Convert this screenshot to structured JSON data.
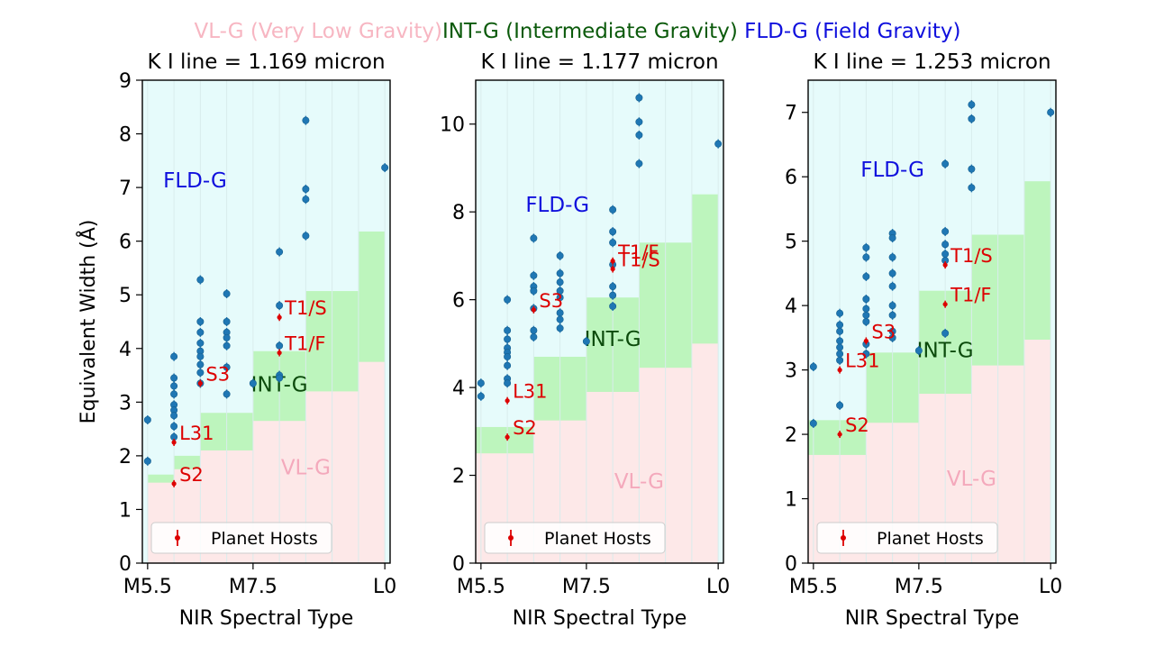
{
  "figure_legend": [
    {
      "label": "VL-G (Very Low Gravity)",
      "color": "#f7b6c2"
    },
    {
      "label": "INT-G (Intermediate Gravity)",
      "color": "#0b5a0b"
    },
    {
      "label": "FLD-G (Field Gravity)",
      "color": "#1010dd"
    }
  ],
  "colors": {
    "vlg_fill": "#fde8e8",
    "intg_fill": "#bdf5bd",
    "fldg_fill": "#e6fbfb",
    "point": "#1f77b4",
    "host": "#dd0000",
    "vlg_text": "#f4a9bc",
    "intg_text": "#0b4a0b",
    "fldg_text": "#1010dd"
  },
  "chart_data": [
    {
      "type": "scatter",
      "title": "K I line = 1.169 micron",
      "xlabel": "NIR Spectral Type",
      "ylabel": "Equivalent Width (Å)",
      "xlim": [
        5.4,
        10.1
      ],
      "ylim": [
        0,
        9
      ],
      "xticks": [
        {
          "value": 5.5,
          "label": "M5.5"
        },
        {
          "value": 7.5,
          "label": "M7.5"
        },
        {
          "value": 10,
          "label": "L0"
        }
      ],
      "yticks": [
        0,
        1,
        2,
        3,
        4,
        5,
        6,
        7,
        8,
        9
      ],
      "region_labels": [
        {
          "text": "FLD-G",
          "x": 6.4,
          "y": 7.0,
          "region": "fldg"
        },
        {
          "text": "INT-G",
          "x": 8.0,
          "y": 3.2,
          "region": "intg"
        },
        {
          "text": "VL-G",
          "x": 8.5,
          "y": 1.65,
          "region": "vlg"
        }
      ],
      "regions": {
        "bins": [
          [
            5.5,
            6.0
          ],
          [
            6.0,
            6.5
          ],
          [
            6.5,
            7.0
          ],
          [
            7.0,
            7.5
          ],
          [
            7.5,
            8.0
          ],
          [
            8.0,
            8.5
          ],
          [
            8.5,
            9.0
          ],
          [
            9.0,
            9.5
          ],
          [
            9.5,
            10.0
          ]
        ],
        "vlg_upper": [
          1.5,
          1.75,
          2.1,
          2.1,
          2.65,
          2.65,
          3.2,
          3.2,
          3.75
        ],
        "intg_upper": [
          1.65,
          2.0,
          2.8,
          2.8,
          3.95,
          3.95,
          5.07,
          5.07,
          6.18
        ]
      },
      "points": [
        {
          "x": 5.5,
          "y": 2.67
        },
        {
          "x": 5.5,
          "y": 1.9
        },
        {
          "x": 6.0,
          "y": 3.85
        },
        {
          "x": 6.0,
          "y": 3.45
        },
        {
          "x": 6.0,
          "y": 3.3
        },
        {
          "x": 6.0,
          "y": 3.15
        },
        {
          "x": 6.0,
          "y": 2.95
        },
        {
          "x": 6.0,
          "y": 2.85
        },
        {
          "x": 6.0,
          "y": 2.75
        },
        {
          "x": 6.0,
          "y": 2.55
        },
        {
          "x": 6.0,
          "y": 2.35
        },
        {
          "x": 6.5,
          "y": 5.28
        },
        {
          "x": 6.5,
          "y": 4.5
        },
        {
          "x": 6.5,
          "y": 4.3
        },
        {
          "x": 6.5,
          "y": 4.1
        },
        {
          "x": 6.5,
          "y": 3.95
        },
        {
          "x": 6.5,
          "y": 3.85
        },
        {
          "x": 6.5,
          "y": 3.7
        },
        {
          "x": 6.5,
          "y": 3.55
        },
        {
          "x": 6.5,
          "y": 3.35
        },
        {
          "x": 7.0,
          "y": 5.02
        },
        {
          "x": 7.0,
          "y": 4.5
        },
        {
          "x": 7.0,
          "y": 4.3
        },
        {
          "x": 7.0,
          "y": 4.2
        },
        {
          "x": 7.0,
          "y": 4.05
        },
        {
          "x": 7.0,
          "y": 3.65
        },
        {
          "x": 7.0,
          "y": 3.15
        },
        {
          "x": 7.5,
          "y": 3.35
        },
        {
          "x": 8.0,
          "y": 5.8
        },
        {
          "x": 8.0,
          "y": 4.8
        },
        {
          "x": 8.0,
          "y": 4.05
        },
        {
          "x": 8.0,
          "y": 3.5
        },
        {
          "x": 8.0,
          "y": 3.45
        },
        {
          "x": 8.5,
          "y": 8.25
        },
        {
          "x": 8.5,
          "y": 6.97
        },
        {
          "x": 8.5,
          "y": 6.78
        },
        {
          "x": 8.5,
          "y": 6.1
        },
        {
          "x": 10.0,
          "y": 7.37
        }
      ],
      "planet_hosts": [
        {
          "label": "S2",
          "x": 6.0,
          "y": 1.48
        },
        {
          "label": "L31",
          "x": 6.0,
          "y": 2.25
        },
        {
          "label": "S3",
          "x": 6.5,
          "y": 3.35
        },
        {
          "label": "T1/F",
          "x": 8.0,
          "y": 3.92
        },
        {
          "label": "T1/S",
          "x": 8.0,
          "y": 4.58
        }
      ],
      "legend": {
        "label": "Planet Hosts",
        "placement": "lower-left"
      }
    },
    {
      "type": "scatter",
      "title": "K I line = 1.177 micron",
      "xlabel": "NIR Spectral Type",
      "ylabel": "",
      "xlim": [
        5.4,
        10.1
      ],
      "ylim": [
        0,
        11
      ],
      "xticks": [
        {
          "value": 5.5,
          "label": "M5.5"
        },
        {
          "value": 7.5,
          "label": "M7.5"
        },
        {
          "value": 10,
          "label": "L0"
        }
      ],
      "yticks": [
        0,
        2,
        4,
        6,
        8,
        10
      ],
      "region_labels": [
        {
          "text": "FLD-G",
          "x": 6.95,
          "y": 8.0,
          "region": "fldg"
        },
        {
          "text": "INT-G",
          "x": 8.0,
          "y": 4.95,
          "region": "intg"
        },
        {
          "text": "VL-G",
          "x": 8.5,
          "y": 1.7,
          "region": "vlg"
        }
      ],
      "regions": {
        "bins": [
          [
            5.4,
            5.5
          ],
          [
            5.5,
            6.0
          ],
          [
            6.0,
            6.5
          ],
          [
            6.5,
            7.0
          ],
          [
            7.0,
            7.5
          ],
          [
            7.5,
            8.0
          ],
          [
            8.0,
            8.5
          ],
          [
            8.5,
            9.0
          ],
          [
            9.0,
            9.5
          ],
          [
            9.5,
            10.0
          ]
        ],
        "vlg_upper": [
          2.5,
          2.5,
          2.5,
          3.25,
          3.25,
          3.9,
          3.9,
          4.45,
          4.45,
          5.0
        ],
        "intg_upper": [
          3.1,
          3.1,
          3.1,
          4.7,
          4.7,
          6.05,
          6.05,
          7.3,
          7.3,
          8.4
        ]
      },
      "points": [
        {
          "x": 5.5,
          "y": 4.1
        },
        {
          "x": 5.5,
          "y": 3.8
        },
        {
          "x": 6.0,
          "y": 6.0
        },
        {
          "x": 6.0,
          "y": 5.3
        },
        {
          "x": 6.0,
          "y": 5.1
        },
        {
          "x": 6.0,
          "y": 4.9
        },
        {
          "x": 6.0,
          "y": 4.8
        },
        {
          "x": 6.0,
          "y": 4.7
        },
        {
          "x": 6.0,
          "y": 4.5
        },
        {
          "x": 6.0,
          "y": 4.2
        },
        {
          "x": 6.0,
          "y": 4.1
        },
        {
          "x": 6.5,
          "y": 7.4
        },
        {
          "x": 6.5,
          "y": 6.55
        },
        {
          "x": 6.5,
          "y": 6.3
        },
        {
          "x": 6.5,
          "y": 6.2
        },
        {
          "x": 6.5,
          "y": 5.8
        },
        {
          "x": 6.5,
          "y": 5.3
        },
        {
          "x": 6.5,
          "y": 5.15
        },
        {
          "x": 7.0,
          "y": 7.0
        },
        {
          "x": 7.0,
          "y": 6.6
        },
        {
          "x": 7.0,
          "y": 6.4
        },
        {
          "x": 7.0,
          "y": 6.2
        },
        {
          "x": 7.0,
          "y": 6.05
        },
        {
          "x": 7.0,
          "y": 5.7
        },
        {
          "x": 7.0,
          "y": 5.55
        },
        {
          "x": 7.0,
          "y": 5.35
        },
        {
          "x": 7.5,
          "y": 5.05
        },
        {
          "x": 8.0,
          "y": 8.05
        },
        {
          "x": 8.0,
          "y": 7.55
        },
        {
          "x": 8.0,
          "y": 7.3
        },
        {
          "x": 8.0,
          "y": 6.8
        },
        {
          "x": 8.0,
          "y": 6.3
        },
        {
          "x": 8.0,
          "y": 6.1
        },
        {
          "x": 8.0,
          "y": 5.85
        },
        {
          "x": 8.5,
          "y": 10.6
        },
        {
          "x": 8.5,
          "y": 10.05
        },
        {
          "x": 8.5,
          "y": 9.75
        },
        {
          "x": 8.5,
          "y": 9.1
        },
        {
          "x": 10.0,
          "y": 9.55
        }
      ],
      "planet_hosts": [
        {
          "label": "S2",
          "x": 6.0,
          "y": 2.87
        },
        {
          "label": "L31",
          "x": 6.0,
          "y": 3.7
        },
        {
          "label": "S3",
          "x": 6.5,
          "y": 5.77
        },
        {
          "label": "T1/F",
          "x": 8.0,
          "y": 6.88
        },
        {
          "label": "T1/S",
          "x": 8.0,
          "y": 6.7
        }
      ],
      "legend": {
        "label": "Planet Hosts",
        "placement": "lower-left"
      }
    },
    {
      "type": "scatter",
      "title": "K I line = 1.253 micron",
      "xlabel": "NIR Spectral Type",
      "ylabel": "",
      "xlim": [
        5.4,
        10.1
      ],
      "ylim": [
        0,
        7.5
      ],
      "xticks": [
        {
          "value": 5.5,
          "label": "M5.5"
        },
        {
          "value": 7.5,
          "label": "M7.5"
        },
        {
          "value": 10,
          "label": "L0"
        }
      ],
      "yticks": [
        0,
        1,
        2,
        3,
        4,
        5,
        6,
        7
      ],
      "region_labels": [
        {
          "text": "FLD-G",
          "x": 7.0,
          "y": 6.0,
          "region": "fldg"
        },
        {
          "text": "INT-G",
          "x": 8.0,
          "y": 3.2,
          "region": "intg"
        },
        {
          "text": "VL-G",
          "x": 8.5,
          "y": 1.2,
          "region": "vlg"
        }
      ],
      "regions": {
        "bins": [
          [
            5.4,
            5.5
          ],
          [
            5.5,
            6.0
          ],
          [
            6.0,
            6.5
          ],
          [
            6.5,
            7.0
          ],
          [
            7.0,
            7.5
          ],
          [
            7.5,
            8.0
          ],
          [
            8.0,
            8.5
          ],
          [
            8.5,
            9.0
          ],
          [
            9.0,
            9.5
          ],
          [
            9.5,
            10.0
          ]
        ],
        "vlg_upper": [
          1.68,
          1.68,
          1.68,
          2.18,
          2.18,
          2.63,
          2.63,
          3.07,
          3.07,
          3.47
        ],
        "intg_upper": [
          2.22,
          2.22,
          2.22,
          3.27,
          3.27,
          4.23,
          4.23,
          5.1,
          5.1,
          5.93
        ]
      },
      "points": [
        {
          "x": 5.5,
          "y": 3.05
        },
        {
          "x": 5.5,
          "y": 2.17
        },
        {
          "x": 6.0,
          "y": 3.88
        },
        {
          "x": 6.0,
          "y": 3.7
        },
        {
          "x": 6.0,
          "y": 3.6
        },
        {
          "x": 6.0,
          "y": 3.45
        },
        {
          "x": 6.0,
          "y": 3.35
        },
        {
          "x": 6.0,
          "y": 3.25
        },
        {
          "x": 6.0,
          "y": 3.15
        },
        {
          "x": 6.0,
          "y": 2.45
        },
        {
          "x": 6.5,
          "y": 4.9
        },
        {
          "x": 6.5,
          "y": 4.75
        },
        {
          "x": 6.5,
          "y": 4.45
        },
        {
          "x": 6.5,
          "y": 4.1
        },
        {
          "x": 6.5,
          "y": 3.95
        },
        {
          "x": 6.5,
          "y": 3.85
        },
        {
          "x": 6.5,
          "y": 3.75
        },
        {
          "x": 6.5,
          "y": 3.4
        },
        {
          "x": 6.5,
          "y": 3.25
        },
        {
          "x": 7.0,
          "y": 5.12
        },
        {
          "x": 7.0,
          "y": 5.05
        },
        {
          "x": 7.0,
          "y": 4.75
        },
        {
          "x": 7.0,
          "y": 4.5
        },
        {
          "x": 7.0,
          "y": 4.3
        },
        {
          "x": 7.0,
          "y": 4.0
        },
        {
          "x": 7.0,
          "y": 3.85
        },
        {
          "x": 7.0,
          "y": 3.6
        },
        {
          "x": 7.0,
          "y": 3.5
        },
        {
          "x": 7.5,
          "y": 3.3
        },
        {
          "x": 8.0,
          "y": 6.2
        },
        {
          "x": 8.0,
          "y": 5.15
        },
        {
          "x": 8.0,
          "y": 4.95
        },
        {
          "x": 8.0,
          "y": 4.8
        },
        {
          "x": 8.0,
          "y": 4.7
        },
        {
          "x": 8.0,
          "y": 3.57
        },
        {
          "x": 8.5,
          "y": 7.12
        },
        {
          "x": 8.5,
          "y": 6.9
        },
        {
          "x": 8.5,
          "y": 6.12
        },
        {
          "x": 8.5,
          "y": 5.83
        },
        {
          "x": 10.0,
          "y": 7.0
        }
      ],
      "planet_hosts": [
        {
          "label": "S2",
          "x": 6.0,
          "y": 2.0
        },
        {
          "label": "L31",
          "x": 6.0,
          "y": 3.0
        },
        {
          "label": "S3",
          "x": 6.5,
          "y": 3.45
        },
        {
          "label": "T1/F",
          "x": 8.0,
          "y": 4.02
        },
        {
          "label": "T1/S",
          "x": 8.0,
          "y": 4.63
        }
      ],
      "legend": {
        "label": "Planet Hosts",
        "placement": "lower-left"
      }
    }
  ]
}
